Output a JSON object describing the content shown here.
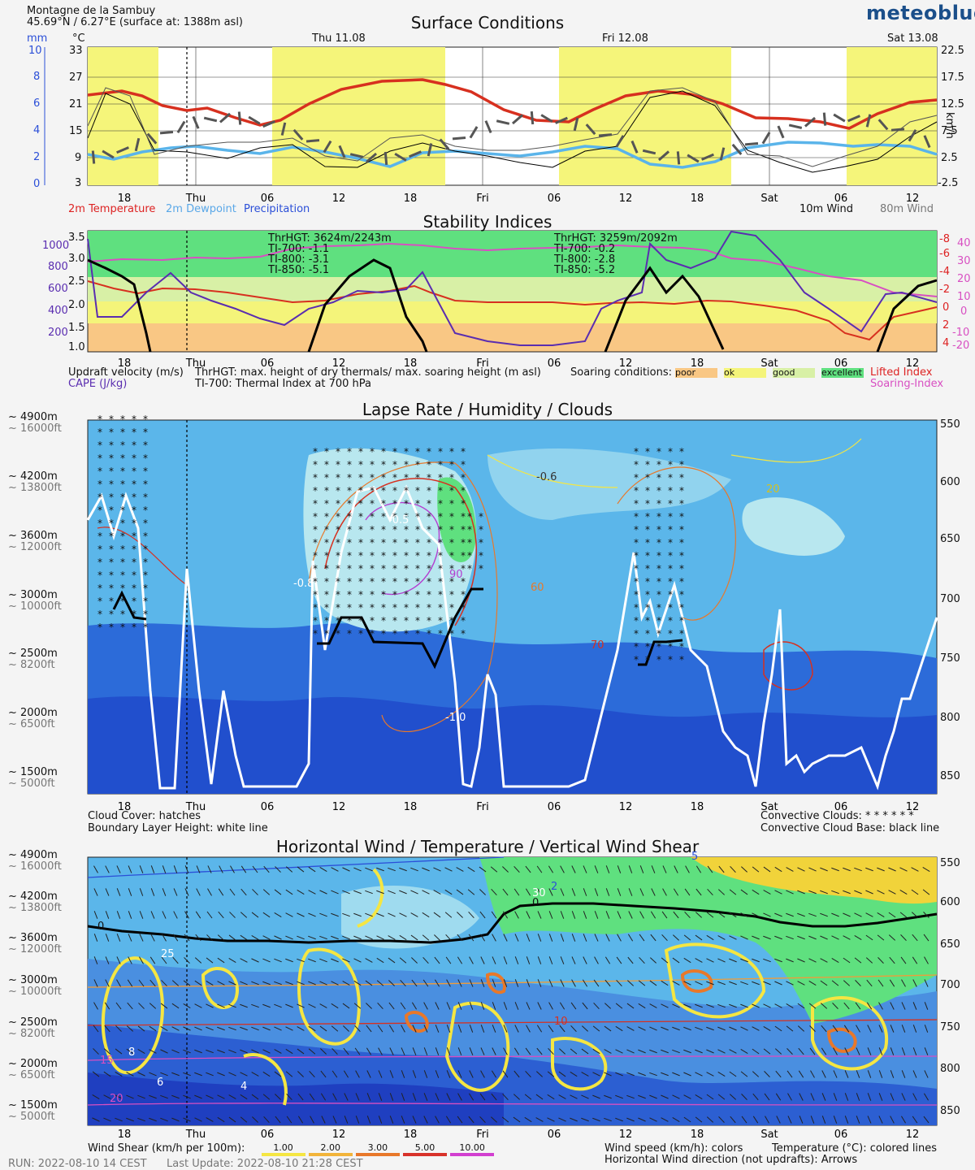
{
  "header": {
    "location": "Montagne de la Sambuy",
    "coords": "45.69°N / 6.27°E (surface at: 1388m asl)",
    "logo": "meteoblue"
  },
  "time_axis": {
    "ticks": [
      "18",
      "Thu",
      "06",
      "12",
      "18",
      "Fri",
      "06",
      "12",
      "18",
      "Sat",
      "06",
      "12"
    ],
    "day_labels": [
      "Thu 11.08",
      "Fri 12.08",
      "Sat 13.08"
    ]
  },
  "surface": {
    "title": "Surface Conditions",
    "unit_mm": "mm",
    "unit_c": "°C",
    "unit_kmh": "km/h",
    "mm_ticks": [
      "10",
      "8",
      "6",
      "4",
      "2",
      "0"
    ],
    "c_ticks": [
      "33",
      "27",
      "21",
      "15",
      "9",
      "3"
    ],
    "wind_ticks": [
      "22.5",
      "17.5",
      "12.5",
      "7.5",
      "2.5",
      "-2.5"
    ],
    "legend_temp": "2m Temperature",
    "legend_dew": "2m Dewpoint",
    "legend_precip": "Precipitation",
    "legend_wind10": "10m Wind",
    "legend_wind80": "80m Wind",
    "colors": {
      "temp": "#d7301f",
      "dew": "#5ab4ea",
      "precip": "#2b4fd8",
      "day": "#f5f57a"
    }
  },
  "stability": {
    "title": "Stability Indices",
    "left_ticks": [
      "3.5",
      "3.0",
      "2.5",
      "2.0",
      "1.5",
      "1.0"
    ],
    "cape_ticks": [
      "1000",
      "800",
      "600",
      "400",
      "200"
    ],
    "li_ticks": [
      "-8",
      "-6",
      "-4",
      "-2",
      "0",
      "2",
      "4"
    ],
    "si_ticks": [
      "40",
      "30",
      "20",
      "10",
      "0",
      "-10",
      "-20"
    ],
    "ann1": {
      "thr": "ThrHGT: 3624m/2243m",
      "ti700": "TI-700: -1.1",
      "ti800": "TI-800:  -3.1",
      "ti850": "TI-850:  -5.1"
    },
    "ann2": {
      "thr": "ThrHGT: 3259m/2092m",
      "ti700": "TI-700: -0.2",
      "ti800": "TI-800:  -2.8",
      "ti850": "TI-850:  -5.2"
    },
    "legend_updraft": "Updraft velocity (m/s)",
    "legend_cape": "CAPE (J/kg)",
    "legend_thr": "ThrHGT: max. height of dry thermals/ max. soaring height (m asl)",
    "legend_ti": "TI-700: Thermal Index at 700 hPa",
    "soaring_label": "Soaring conditions:",
    "soaring": [
      {
        "label": "poor",
        "color": "#f9c784"
      },
      {
        "label": "ok",
        "color": "#f4f47a"
      },
      {
        "label": "good",
        "color": "#d8f0a6"
      },
      {
        "label": "excellent",
        "color": "#5fe07f"
      }
    ],
    "legend_li": "Lifted Index",
    "legend_si": "Soaring-Index"
  },
  "lapse": {
    "title": "Lapse Rate / Humidity / Clouds",
    "left_m": [
      "~ 4900m",
      "~ 4200m",
      "~ 3600m",
      "~ 3000m",
      "~ 2500m",
      "~ 2000m",
      "~ 1500m"
    ],
    "left_ft": [
      "~ 16000ft",
      "~ 13800ft",
      "~ 12000ft",
      "~ 10000ft",
      "~ 8200ft",
      "~ 6500ft",
      "~ 5000ft"
    ],
    "hpa": [
      "550",
      "600",
      "650",
      "700",
      "750",
      "800",
      "850"
    ],
    "contour_labels": [
      "-0.6",
      "-0.8",
      "-1.0",
      "-0.5",
      "20",
      "60",
      "70",
      "90"
    ],
    "legend_cc": "Cloud Cover: hatches",
    "legend_blh": "Boundary Layer Height: white line",
    "legend_conv": "Convective Clouds: * * * * * *",
    "legend_ccb": "Convective Cloud Base: black line"
  },
  "wind": {
    "title": "Horizontal Wind / Temperature / Vertical Wind Shear",
    "contour_labels": [
      "0",
      "5",
      "10",
      "15",
      "20",
      "25",
      "30",
      "2",
      "4",
      "6",
      "8"
    ],
    "shear_label": "Wind Shear (km/h per 100m):",
    "shear": [
      {
        "label": "1.00",
        "color": "#f5e642"
      },
      {
        "label": "2.00",
        "color": "#f2b43a"
      },
      {
        "label": "3.00",
        "color": "#e8782a"
      },
      {
        "label": "5.00",
        "color": "#d8322a"
      },
      {
        "label": "10.00",
        "color": "#d23fd0"
      }
    ],
    "legend_speed": "Wind speed (km/h): colors",
    "legend_temp": "Temperature (°C): colored lines",
    "legend_dir": "Horizontal Wind direction (not updrafts): Arrows"
  },
  "footer": {
    "run": "RUN: 2022-08-10 14 CEST",
    "update": "Last Update: 2022-08-10 21:28 CEST"
  }
}
